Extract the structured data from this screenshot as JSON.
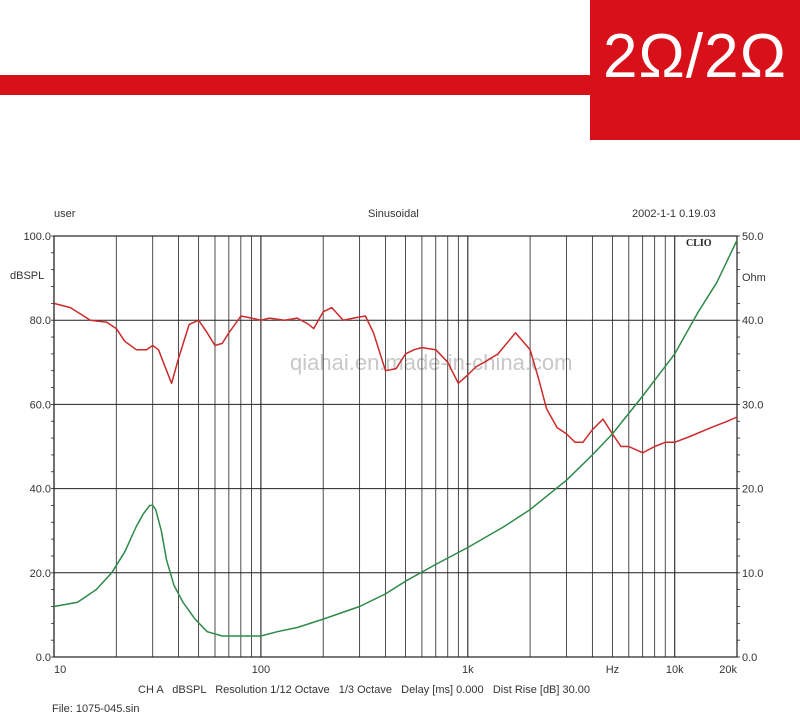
{
  "badge": {
    "text": "2Ω/2Ω"
  },
  "header": {
    "left": "user",
    "center": "Sinusoidal",
    "right": "2002-1-1 0.19.03"
  },
  "brand": "CLIO",
  "watermark": "qiahai.en.made-in-china.com",
  "footer": {
    "line1": "CH A   dBSPL   Resolution 1/12 Octave   1/3 Octave   Delay [ms] 0.000   Dist Rise [dB] 30.00",
    "line2": "File: 1075-045.sin"
  },
  "colors": {
    "spl": "#cc2a2a",
    "impedance": "#2e8a48",
    "accent": "#d8101a"
  },
  "chart_data": {
    "type": "line",
    "x_scale": "log",
    "xlim": [
      10,
      20000
    ],
    "grid": true,
    "left_axis": {
      "label": "dBSPL",
      "ylim": [
        0,
        100
      ],
      "ticks": [
        "0.0",
        "20.0",
        "40.0",
        "60.0",
        "80.0",
        "100.0"
      ]
    },
    "right_axis": {
      "label": "Ohm",
      "ylim": [
        0,
        50
      ],
      "ticks": [
        "0.0",
        "10.0",
        "20.0",
        "30.0",
        "40.0",
        "50.0"
      ]
    },
    "x_tick_labels": [
      {
        "value": 10,
        "label": "10"
      },
      {
        "value": 100,
        "label": "100"
      },
      {
        "value": 1000,
        "label": "1k"
      },
      {
        "value": 5000,
        "label": "Hz"
      },
      {
        "value": 10000,
        "label": "10k"
      },
      {
        "value": 20000,
        "label": "20k"
      }
    ],
    "series": [
      {
        "axis": "left",
        "color": "#cc2a2a",
        "x": [
          10,
          12,
          15,
          18,
          20,
          22,
          25,
          28,
          30,
          32,
          35,
          37,
          40,
          45,
          50,
          55,
          60,
          65,
          70,
          80,
          90,
          100,
          110,
          130,
          150,
          170,
          180,
          200,
          220,
          250,
          280,
          320,
          350,
          400,
          450,
          500,
          550,
          600,
          700,
          800,
          900,
          1000,
          1100,
          1200,
          1400,
          1700,
          2000,
          2200,
          2400,
          2700,
          3000,
          3300,
          3600,
          4000,
          4500,
          5000,
          5500,
          6000,
          7000,
          8000,
          9000,
          10000,
          12000,
          15000,
          18000,
          20000
        ],
        "y": [
          84,
          83,
          80,
          79.5,
          78,
          75,
          73,
          73,
          74,
          73,
          68,
          65,
          71,
          79,
          80,
          77,
          74,
          74.5,
          77,
          81,
          80.5,
          80,
          80.5,
          80,
          80.5,
          79,
          78,
          82,
          83,
          80,
          80.5,
          81,
          77,
          68,
          68.5,
          72,
          73,
          73.5,
          73,
          70,
          65,
          67,
          69,
          70,
          72,
          77,
          73,
          66,
          59,
          54.5,
          53,
          51,
          51,
          54,
          56.5,
          53,
          50,
          50,
          48.5,
          50,
          51,
          51,
          52.5,
          54.5,
          56,
          57
        ]
      },
      {
        "axis": "right",
        "color": "#2e8a48",
        "x": [
          10,
          13,
          16,
          19,
          22,
          25,
          27,
          29,
          30,
          31,
          33,
          35,
          38,
          42,
          48,
          55,
          65,
          80,
          100,
          120,
          150,
          200,
          300,
          400,
          500,
          700,
          1000,
          1500,
          2000,
          3000,
          4000,
          5000,
          7000,
          10000,
          13000,
          16000,
          20000
        ],
        "y": [
          6,
          6.5,
          8,
          10,
          12.5,
          15.5,
          17,
          18,
          18,
          17.5,
          15,
          11.5,
          8.5,
          6.5,
          4.5,
          3,
          2.5,
          2.5,
          2.5,
          3,
          3.5,
          4.5,
          6,
          7.5,
          9,
          11,
          13,
          15.5,
          17.5,
          21,
          24,
          26.5,
          31,
          36,
          41,
          44.5,
          49.5
        ]
      }
    ]
  }
}
